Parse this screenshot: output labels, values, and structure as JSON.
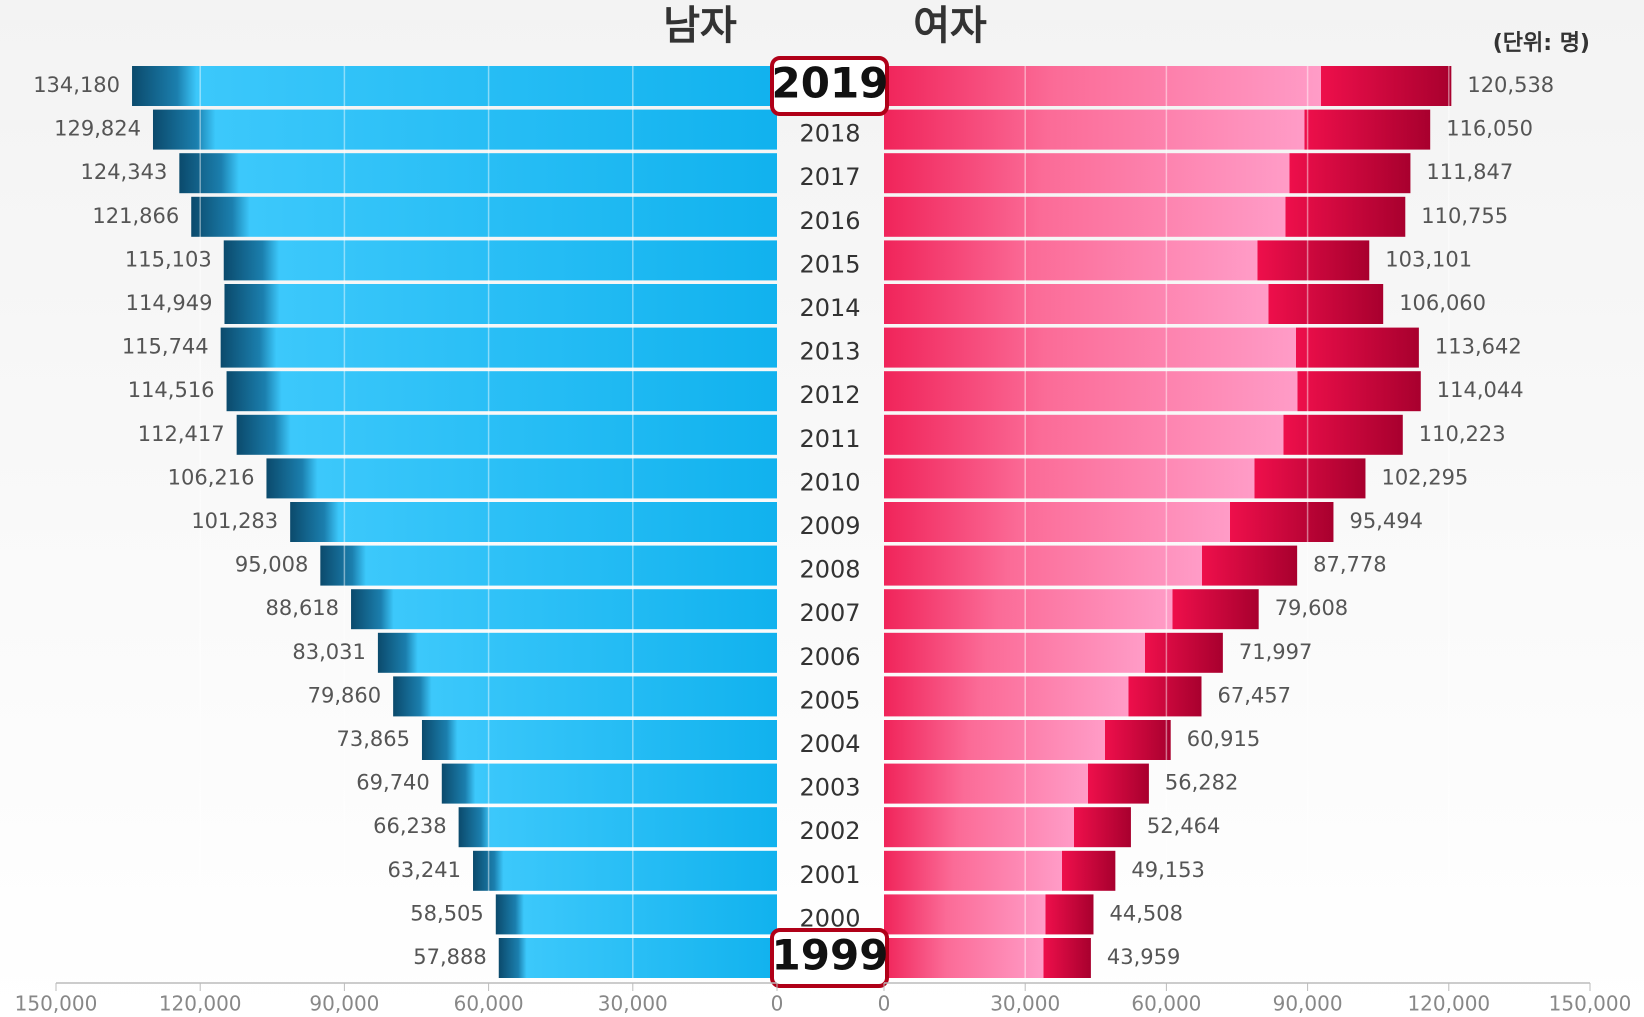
{
  "chart_data": {
    "type": "pyramid",
    "unit_note": "(단위: 명)",
    "categories": [
      "2019",
      "2018",
      "2017",
      "2016",
      "2015",
      "2014",
      "2013",
      "2012",
      "2011",
      "2010",
      "2009",
      "2008",
      "2007",
      "2006",
      "2005",
      "2004",
      "2003",
      "2002",
      "2001",
      "2000",
      "1999"
    ],
    "series": [
      {
        "name": "남자",
        "color": "#1fb8f0",
        "values": [
          134180,
          129824,
          124343,
          121866,
          115103,
          114949,
          115744,
          114516,
          112417,
          106216,
          101283,
          95008,
          88618,
          83031,
          79860,
          73865,
          69740,
          66238,
          63241,
          58505,
          57888
        ],
        "value_labels": [
          "134,180",
          "129,824",
          "124,343",
          "121,866",
          "115,103",
          "114,949",
          "115,744",
          "114,516",
          "112,417",
          "106,216",
          "101,283",
          "95,008",
          "88,618",
          "83,031",
          "79,860",
          "73,865",
          "69,740",
          "66,238",
          "63,241",
          "58,505",
          "57,888"
        ]
      },
      {
        "name": "여자",
        "color": "#f0245a",
        "values": [
          120538,
          116050,
          111847,
          110755,
          103101,
          106060,
          113642,
          114044,
          110223,
          102295,
          95494,
          87778,
          79608,
          71997,
          67457,
          60915,
          56282,
          52464,
          49153,
          44508,
          43959
        ],
        "value_labels": [
          "120,538",
          "116,050",
          "111,847",
          "110,755",
          "103,101",
          "106,060",
          "113,642",
          "114,044",
          "110,223",
          "102,295",
          "95,494",
          "87,778",
          "79,608",
          "71,997",
          "67,457",
          "60,915",
          "56,282",
          "52,464",
          "49,153",
          "44,508",
          "43,959"
        ]
      }
    ],
    "xlim": [
      0,
      150000
    ],
    "xticks": [
      {
        "value": 0,
        "label": "0"
      },
      {
        "value": 30000,
        "label": "30,000"
      },
      {
        "value": 60000,
        "label": "60,000"
      },
      {
        "value": 90000,
        "label": "90,000"
      },
      {
        "value": 120000,
        "label": "120,000"
      },
      {
        "value": 150000,
        "label": "150,000"
      }
    ],
    "grid": true
  }
}
